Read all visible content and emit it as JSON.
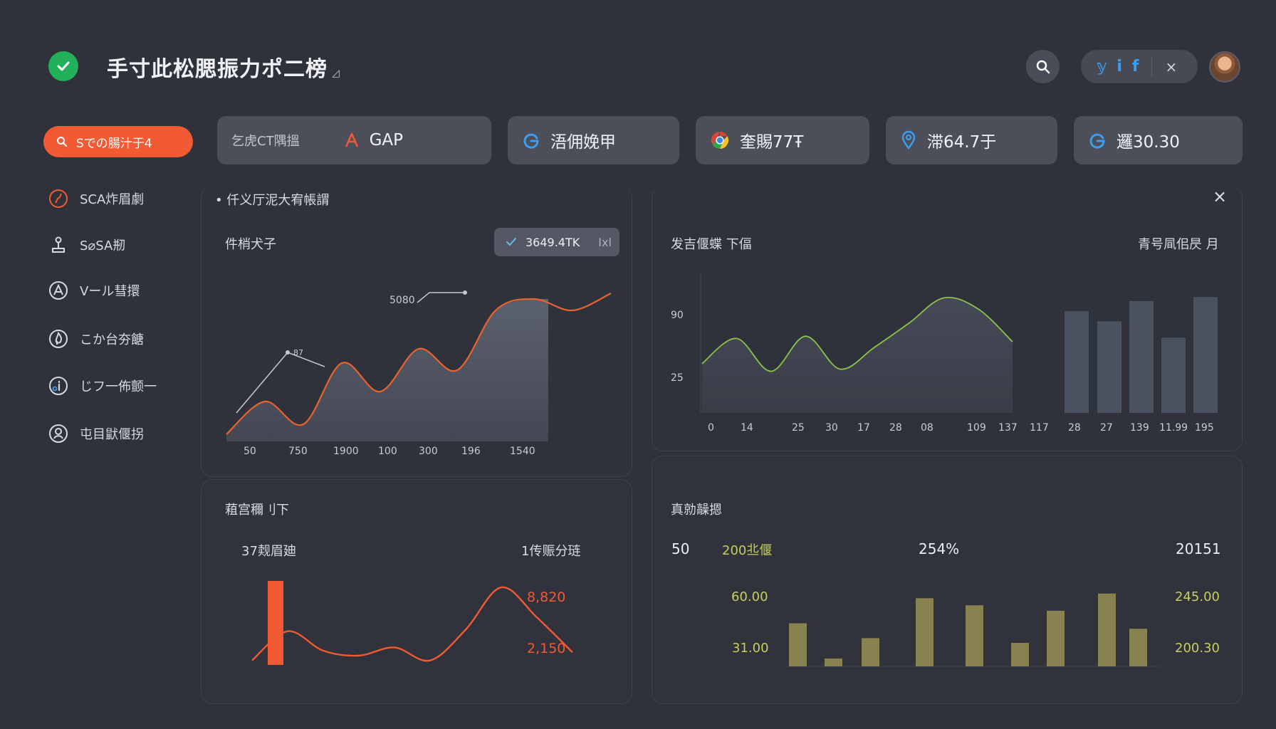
{
  "header": {
    "title": "手寸此松腮振力ポ二榜",
    "title_mark": "◿",
    "social": {
      "icon1": "𝕪",
      "icon2": "i",
      "icon3": "f",
      "close": "×"
    }
  },
  "toolbar": {
    "primary_label": "Sでの腸汁于4",
    "cards": [
      {
        "small_label": "乞虎CT隅搵",
        "icon": "a-logo-icon",
        "value": "GAP"
      },
      {
        "icon": "g-logo-icon",
        "value": "浯佣娩甲"
      },
      {
        "icon": "chrome-logo-icon",
        "value": "奎賜77Ŧ"
      },
      {
        "icon": "location-pin-icon",
        "value": "滞64.7于"
      },
      {
        "icon": "g-logo-icon",
        "value": "邏30.30"
      }
    ]
  },
  "sidebar": {
    "items": [
      {
        "label": "SCA炸眉劇",
        "icon": "route-icon"
      },
      {
        "label": "S⌀SA剏",
        "icon": "joystick-icon"
      },
      {
        "label": "Vール彗擐",
        "icon": "compass-icon"
      },
      {
        "label": "こか台夯餹",
        "icon": "flame-icon"
      },
      {
        "label": "じフ一佈颤一",
        "icon": "info-icon"
      },
      {
        "label": "屯目鼣偃拐",
        "icon": "person-icon"
      }
    ]
  },
  "main": {
    "section_title": "仟义厅泥大宥帳謂",
    "section_bullet": "•",
    "close": "×"
  },
  "panels": {
    "top_left": {
      "title": "件梢犬子",
      "chip_value": "3649.4TK",
      "chip_extra": "Ixl",
      "annotation_1": "5080",
      "annotation_2": "87"
    },
    "top_right": {
      "title": "发吉偃蝶 下偪",
      "right_label": "青号凬佀昃 月"
    },
    "bottom_left": {
      "title": "蒩宫穪刂下",
      "left_label": "37觌眉廸",
      "right_label": "1传赈分琏",
      "value_high": "8,820",
      "value_low": "2,150"
    },
    "bottom_right": {
      "title": "真勍髞摁",
      "stat_1": "50",
      "stat_2": "200丠偃",
      "stat_3": "254%",
      "stat_4": "20151",
      "left_tick_high": "60.00",
      "left_tick_low": "31.00",
      "right_tick_high": "245.00",
      "right_tick_low": "200.30"
    }
  },
  "chart_data": [
    {
      "type": "area",
      "x_tick_labels": [
        "50",
        "750",
        "1900",
        "100",
        "300",
        "196",
        "1540"
      ],
      "series": [
        {
          "values": [
            5,
            28,
            12,
            55,
            35,
            65,
            50,
            92,
            100,
            92,
            104
          ]
        }
      ],
      "ylim": [
        0,
        120
      ],
      "color": "#e8632e"
    },
    {
      "type": "area",
      "y_tick_labels": [
        "90",
        "25"
      ],
      "x_tick_labels": [
        "0",
        "14",
        "25",
        "30",
        "17",
        "28",
        "08",
        "109",
        "137",
        "117",
        "28",
        "27",
        "139",
        "11.99",
        "195"
      ],
      "series": [
        {
          "values": [
            45,
            68,
            38,
            70,
            40,
            60,
            82,
            105,
            95,
            65
          ]
        }
      ],
      "ylim": [
        0,
        130
      ],
      "color": "#8bc34a"
    },
    {
      "type": "bar",
      "series": [
        {
          "values": [
            100,
            90,
            110,
            74,
            114
          ]
        }
      ],
      "ylim": [
        0,
        140
      ],
      "color": "#4a5260"
    },
    {
      "type": "line",
      "series": [
        {
          "values": [
            2,
            38,
            14,
            8,
            18,
            2,
            40,
            92,
            55,
            12
          ]
        }
      ],
      "bar_value": 100,
      "ylim": [
        0,
        100
      ],
      "color": "#f15a33"
    },
    {
      "type": "bar",
      "series": [
        {
          "values": [
            55,
            10,
            36,
            87,
            78,
            30,
            71,
            93,
            48
          ]
        }
      ],
      "ylim": [
        0,
        100
      ],
      "color": "#878250"
    }
  ],
  "colors": {
    "accent": "#f15a33",
    "success": "#22b05b",
    "link": "#3b9ef0",
    "card": "#4c4f5a",
    "bg": "#2f313b"
  }
}
